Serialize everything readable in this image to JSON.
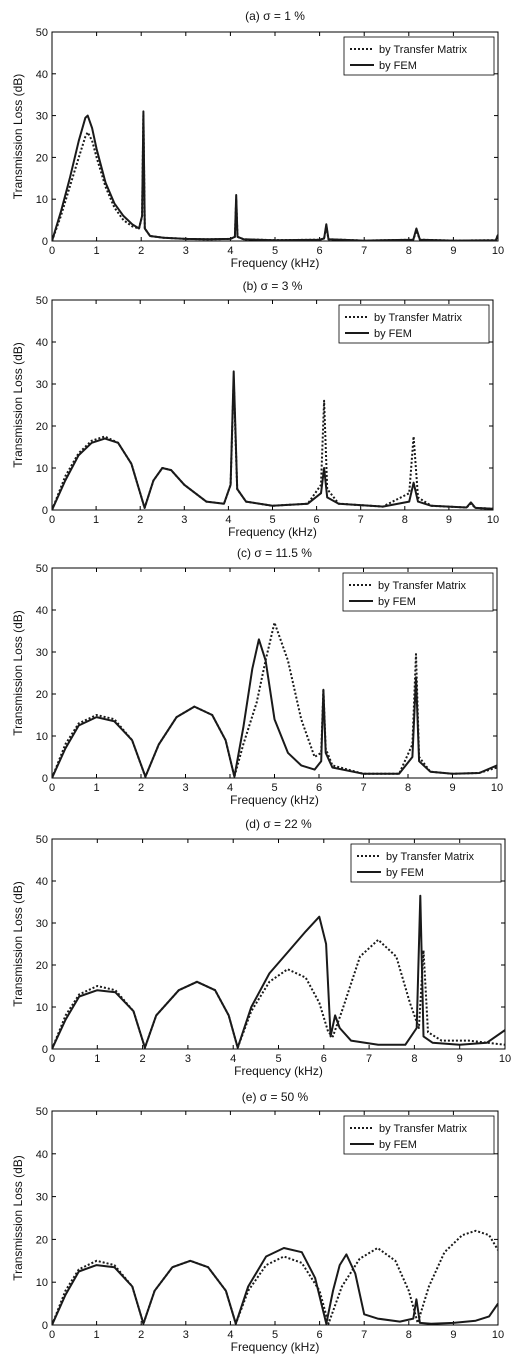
{
  "figure": {
    "background": "#ffffff",
    "axis_color": "#000000",
    "line_color": "#1a1a1a"
  },
  "chart_data": [
    {
      "type": "line",
      "title": "(a) σ = 1 %",
      "xlabel": "Frequency (kHz)",
      "ylabel": "Transmission Loss (dB)",
      "xlim": [
        0,
        10
      ],
      "ylim": [
        0,
        50
      ],
      "xticks": [
        "0",
        "1",
        "2",
        "3",
        "4",
        "5",
        "6",
        "7",
        "8",
        "9",
        "10"
      ],
      "yticks": [
        "0",
        "10",
        "20",
        "30",
        "40",
        "50"
      ],
      "grid": false,
      "legend_position": "top-right",
      "series": [
        {
          "name": "by Transfer Matrix",
          "style": "dotted",
          "x": [
            0,
            0.2,
            0.4,
            0.6,
            0.75,
            0.8,
            0.9,
            1.0,
            1.2,
            1.4,
            1.6,
            1.8,
            1.95,
            2.02,
            2.05,
            2.08,
            2.2,
            2.5,
            3,
            3.5,
            4,
            4.1,
            4.13,
            4.16,
            4.3,
            5,
            6,
            6.1,
            6.15,
            6.2,
            7,
            8.1,
            8.17,
            8.25,
            9,
            9.95,
            10
          ],
          "y": [
            0,
            6,
            13,
            20,
            25,
            26,
            24,
            20,
            13,
            8,
            5,
            3.5,
            3,
            6,
            30,
            3,
            1.2,
            0.8,
            0.5,
            0.4,
            0.5,
            1,
            10,
            1,
            0.4,
            0.2,
            0.3,
            0.6,
            3.5,
            0.4,
            0.1,
            0.3,
            2.5,
            0.3,
            0.1,
            0.2,
            1.5
          ]
        },
        {
          "name": "by FEM",
          "style": "solid",
          "x": [
            0,
            0.2,
            0.4,
            0.6,
            0.75,
            0.8,
            0.9,
            1.0,
            1.2,
            1.4,
            1.6,
            1.8,
            1.95,
            2.02,
            2.05,
            2.08,
            2.2,
            2.5,
            3,
            3.5,
            4,
            4.1,
            4.13,
            4.16,
            4.3,
            5,
            6,
            6.1,
            6.15,
            6.2,
            7,
            8.1,
            8.17,
            8.25,
            9,
            9.95,
            10
          ],
          "y": [
            0,
            7,
            15,
            24,
            29.5,
            30,
            27,
            22,
            14,
            9,
            6,
            4,
            3,
            6,
            31,
            3,
            1.2,
            0.8,
            0.5,
            0.4,
            0.5,
            1,
            11,
            1,
            0.4,
            0.2,
            0.3,
            0.6,
            4,
            0.4,
            0.1,
            0.3,
            3,
            0.3,
            0.1,
            0.2,
            1.5
          ]
        }
      ]
    },
    {
      "type": "line",
      "title": "(b) σ = 3 %",
      "xlabel": "Frequency (kHz)",
      "ylabel": "Transmission Loss (dB)",
      "xlim": [
        0,
        10
      ],
      "ylim": [
        0,
        50
      ],
      "xticks": [
        "0",
        "1",
        "2",
        "3",
        "4",
        "5",
        "6",
        "7",
        "8",
        "9",
        "10"
      ],
      "yticks": [
        "0",
        "10",
        "20",
        "30",
        "40",
        "50"
      ],
      "grid": false,
      "legend_position": "top-right",
      "series": [
        {
          "name": "by Transfer Matrix",
          "style": "dotted",
          "x": [
            0,
            0.3,
            0.6,
            0.9,
            1.2,
            1.5,
            1.8,
            2.1,
            2.3,
            2.5,
            2.7,
            3.0,
            3.5,
            3.9,
            4.05,
            4.12,
            4.2,
            4.4,
            5.0,
            5.8,
            6.1,
            6.17,
            6.24,
            6.5,
            7.5,
            8.1,
            8.2,
            8.3,
            8.6,
            9.4,
            9.5,
            9.6,
            10
          ],
          "y": [
            0,
            8,
            13.5,
            16.5,
            17.5,
            16,
            11,
            0.5,
            7,
            10,
            9.5,
            6,
            2,
            1.5,
            6,
            31,
            5,
            2,
            1,
            1.5,
            6,
            26,
            5,
            1.5,
            0.8,
            4,
            17.5,
            3,
            1,
            0.6,
            1.5,
            0.5,
            0.3
          ]
        },
        {
          "name": "by FEM",
          "style": "solid",
          "x": [
            0,
            0.3,
            0.6,
            0.9,
            1.2,
            1.5,
            1.8,
            2.1,
            2.3,
            2.5,
            2.7,
            3.0,
            3.5,
            3.9,
            4.05,
            4.12,
            4.2,
            4.4,
            5.0,
            5.8,
            6.1,
            6.17,
            6.24,
            6.5,
            7.5,
            8.1,
            8.2,
            8.3,
            8.6,
            9.4,
            9.5,
            9.6,
            10
          ],
          "y": [
            0,
            7,
            13,
            16,
            17,
            16,
            11,
            0.5,
            7,
            10,
            9.5,
            6,
            2,
            1.5,
            6,
            33,
            5,
            2,
            1,
            1.5,
            4,
            10,
            3,
            1.5,
            0.8,
            2,
            6.5,
            2,
            1,
            0.6,
            1.8,
            0.5,
            0.3
          ]
        }
      ]
    },
    {
      "type": "line",
      "title": "(c) σ = 11.5  %",
      "xlabel": "Frequency (kHz)",
      "ylabel": "Transmission Loss (dB)",
      "xlim": [
        0,
        10
      ],
      "ylim": [
        0,
        50
      ],
      "xticks": [
        "0",
        "1",
        "2",
        "3",
        "4",
        "5",
        "6",
        "7",
        "8",
        "9",
        "10"
      ],
      "yticks": [
        "0",
        "10",
        "20",
        "30",
        "40",
        "50"
      ],
      "grid": false,
      "legend_position": "top-right",
      "series": [
        {
          "name": "by Transfer Matrix",
          "style": "dotted",
          "x": [
            0,
            0.3,
            0.6,
            1.0,
            1.4,
            1.8,
            2.1,
            2.4,
            2.8,
            3.2,
            3.6,
            3.9,
            4.1,
            4.3,
            4.6,
            4.8,
            5.0,
            5.3,
            5.6,
            5.9,
            6.05,
            6.1,
            6.15,
            6.3,
            7.0,
            7.8,
            8.1,
            8.18,
            8.25,
            8.5,
            9.0,
            9.6,
            10
          ],
          "y": [
            0,
            8,
            13,
            15,
            14,
            9,
            0.3,
            8,
            14.5,
            17,
            15,
            9,
            0.3,
            8,
            18,
            28,
            37,
            28,
            14,
            5,
            6,
            21,
            7,
            3,
            1,
            1,
            8,
            29.5,
            5,
            1.5,
            1,
            1.2,
            2.5
          ]
        },
        {
          "name": "by FEM",
          "style": "solid",
          "x": [
            0,
            0.3,
            0.6,
            1.0,
            1.4,
            1.8,
            2.1,
            2.4,
            2.8,
            3.2,
            3.6,
            3.9,
            4.1,
            4.3,
            4.5,
            4.65,
            4.8,
            5.0,
            5.3,
            5.6,
            5.9,
            6.05,
            6.1,
            6.15,
            6.3,
            7.0,
            7.8,
            8.1,
            8.18,
            8.25,
            8.5,
            9.0,
            9.6,
            10
          ],
          "y": [
            0,
            7,
            12.5,
            14.5,
            13.5,
            9,
            0.3,
            8,
            14.5,
            17,
            15,
            9,
            0.3,
            12,
            26,
            33,
            28,
            14,
            6,
            3,
            2,
            4,
            21,
            6,
            2.5,
            1,
            1,
            5,
            24,
            4,
            1.5,
            1,
            1.2,
            3
          ]
        }
      ]
    },
    {
      "type": "line",
      "title": "(d) σ = 22 %",
      "xlabel": "Frequency (kHz)",
      "ylabel": "Transmission Loss (dB)",
      "xlim": [
        0,
        10
      ],
      "ylim": [
        0,
        50
      ],
      "xticks": [
        "0",
        "1",
        "2",
        "3",
        "4",
        "5",
        "6",
        "7",
        "8",
        "9",
        "10"
      ],
      "yticks": [
        "0",
        "10",
        "20",
        "30",
        "40",
        "50"
      ],
      "grid": false,
      "legend_position": "top-right",
      "series": [
        {
          "name": "by Transfer Matrix",
          "style": "dotted",
          "x": [
            0,
            0.3,
            0.6,
            1.0,
            1.4,
            1.8,
            2.05,
            2.3,
            2.8,
            3.2,
            3.6,
            3.9,
            4.1,
            4.4,
            4.8,
            5.2,
            5.6,
            5.9,
            6.1,
            6.2,
            6.4,
            6.8,
            7.2,
            7.6,
            7.9,
            8.1,
            8.2,
            8.3,
            8.6,
            9.2,
            10
          ],
          "y": [
            0,
            8,
            13,
            15,
            14,
            9,
            0.3,
            8,
            14,
            16,
            14,
            8,
            0.3,
            9,
            16,
            19,
            17,
            11,
            4,
            3,
            9,
            22,
            26,
            22,
            11,
            5,
            23.5,
            4,
            2,
            2,
            1
          ]
        },
        {
          "name": "by FEM",
          "style": "solid",
          "x": [
            0,
            0.3,
            0.6,
            1.0,
            1.4,
            1.8,
            2.05,
            2.3,
            2.8,
            3.2,
            3.6,
            3.9,
            4.1,
            4.4,
            4.8,
            5.2,
            5.6,
            5.9,
            6.05,
            6.15,
            6.25,
            6.35,
            6.6,
            7.2,
            7.8,
            8.05,
            8.13,
            8.2,
            8.4,
            9.0,
            9.6,
            10
          ],
          "y": [
            0,
            7,
            12.5,
            14,
            13.5,
            9,
            0.3,
            8,
            14,
            16,
            14,
            8,
            0.3,
            10,
            18,
            23,
            28,
            31.5,
            25,
            3,
            8,
            5,
            2,
            1,
            1,
            5,
            36.5,
            3,
            1.5,
            1,
            1.5,
            4.5
          ]
        }
      ]
    },
    {
      "type": "line",
      "title": "(e) σ = 50  %",
      "xlabel": "Frequency (kHz)",
      "ylabel": "Transmission Loss (dB)",
      "xlim": [
        0,
        10
      ],
      "ylim": [
        0,
        50
      ],
      "xticks": [
        "0",
        "1",
        "2",
        "3",
        "4",
        "5",
        "6",
        "7",
        "8",
        "9",
        "10"
      ],
      "yticks": [
        "0",
        "10",
        "20",
        "30",
        "40",
        "50"
      ],
      "grid": false,
      "legend_position": "top-right",
      "series": [
        {
          "name": "by Transfer Matrix",
          "style": "dotted",
          "x": [
            0,
            0.3,
            0.6,
            1.0,
            1.4,
            1.8,
            2.05,
            2.3,
            2.7,
            3.1,
            3.5,
            3.9,
            4.12,
            4.4,
            4.8,
            5.2,
            5.6,
            6.0,
            6.2,
            6.5,
            6.9,
            7.3,
            7.7,
            8.0,
            8.2,
            8.45,
            8.8,
            9.2,
            9.5,
            9.8,
            10
          ],
          "y": [
            0,
            8,
            13,
            15,
            14,
            9,
            0.3,
            8,
            13.5,
            15,
            13.5,
            8,
            0.3,
            8,
            14,
            16,
            14.5,
            8,
            0.3,
            9,
            15.5,
            18,
            15,
            8,
            0.5,
            9,
            17,
            21,
            22,
            21,
            17.5
          ]
        },
        {
          "name": "by FEM",
          "style": "solid",
          "x": [
            0,
            0.3,
            0.6,
            1.0,
            1.4,
            1.8,
            2.05,
            2.3,
            2.7,
            3.1,
            3.5,
            3.9,
            4.12,
            4.4,
            4.8,
            5.2,
            5.6,
            5.9,
            6.15,
            6.3,
            6.45,
            6.6,
            6.8,
            7.0,
            7.3,
            7.8,
            8.1,
            8.17,
            8.25,
            8.5,
            9.0,
            9.5,
            9.8,
            10
          ],
          "y": [
            0,
            7,
            12.5,
            14,
            13.5,
            9,
            0.3,
            8,
            13.5,
            15,
            13.5,
            8,
            0.3,
            9,
            16,
            18,
            17,
            11,
            0.3,
            8,
            14,
            16.5,
            12,
            2.5,
            1.5,
            0.8,
            1.5,
            6,
            0.5,
            0.3,
            0.5,
            1,
            2,
            5
          ]
        }
      ]
    }
  ]
}
